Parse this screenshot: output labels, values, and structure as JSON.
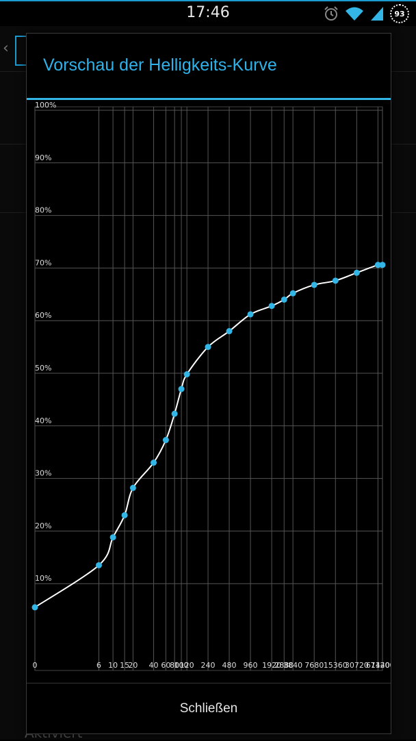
{
  "statusbar": {
    "time": "17:46",
    "battery": "93"
  },
  "background": {
    "bottom_text": "Aktiviert"
  },
  "dialog": {
    "title": "Vorschau der Helligkeits-Kurve",
    "close_label": "Schließen"
  },
  "colors": {
    "accent": "#33b5e5",
    "curve": "#ffffff",
    "grid": "#555555",
    "point": "#33b5e5"
  },
  "chart_data": {
    "type": "line",
    "title": "",
    "xlabel": "",
    "ylabel": "",
    "x_scale": "log",
    "ylim": [
      0,
      100
    ],
    "grid": true,
    "y_ticks": [
      10,
      20,
      30,
      40,
      50,
      60,
      70,
      80,
      90,
      100
    ],
    "y_tick_labels": [
      "10%",
      "20%",
      "30%",
      "40%",
      "50%",
      "60%",
      "70%",
      "80%",
      "90%",
      "100%"
    ],
    "x_ticks": [
      0,
      6,
      10,
      15,
      20,
      40,
      60,
      80,
      100,
      120,
      240,
      480,
      960,
      1920,
      2880,
      3840,
      7680,
      15360,
      30720,
      61440,
      71200
    ],
    "x_tick_labels": [
      "0",
      "6",
      "10",
      "15",
      "20",
      "40",
      "60",
      "80",
      "100",
      "120",
      "240",
      "480",
      "960",
      "1920",
      "2880",
      "3840",
      "7680",
      "15360",
      "30720",
      "61440",
      "71200"
    ],
    "series": [
      {
        "points": [
          {
            "x": 0,
            "y": 5.5
          },
          {
            "x": 6,
            "y": 13.5
          },
          {
            "x": 10,
            "y": 18.8
          },
          {
            "x": 15,
            "y": 23.0
          },
          {
            "x": 20,
            "y": 28.2
          },
          {
            "x": 40,
            "y": 33.0
          },
          {
            "x": 60,
            "y": 37.3
          },
          {
            "x": 80,
            "y": 42.3
          },
          {
            "x": 100,
            "y": 47.0
          },
          {
            "x": 120,
            "y": 49.8
          },
          {
            "x": 240,
            "y": 55.0
          },
          {
            "x": 480,
            "y": 58.0
          },
          {
            "x": 960,
            "y": 61.2
          },
          {
            "x": 1920,
            "y": 62.8
          },
          {
            "x": 2880,
            "y": 64.0
          },
          {
            "x": 3840,
            "y": 65.2
          },
          {
            "x": 7680,
            "y": 66.8
          },
          {
            "x": 15360,
            "y": 67.6
          },
          {
            "x": 30720,
            "y": 69.1
          },
          {
            "x": 61440,
            "y": 70.6
          },
          {
            "x": 71200,
            "y": 70.6
          }
        ]
      }
    ]
  }
}
